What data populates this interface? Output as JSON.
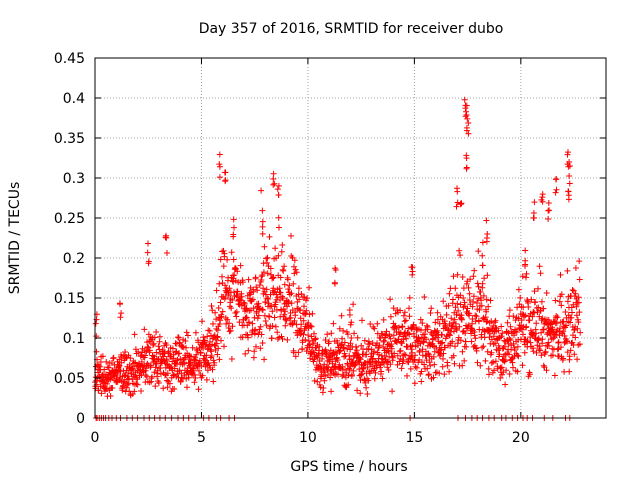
{
  "chart_data": {
    "type": "scatter",
    "title": "Day 357 of 2016, SRMTID for receiver dubo",
    "xlabel": "GPS time / hours",
    "ylabel": "SRMTID / TECUs",
    "xlim": [
      0,
      24
    ],
    "ylim": [
      0,
      0.45
    ],
    "x_ticks": [
      0,
      5,
      10,
      15,
      20
    ],
    "x_tick_labels": [
      "0",
      "5",
      "10",
      "15",
      "20"
    ],
    "y_ticks": [
      0,
      0.05,
      0.1,
      0.15,
      0.2,
      0.25,
      0.3,
      0.35,
      0.4,
      0.45
    ],
    "y_tick_labels": [
      "0",
      "0.05",
      "0.1",
      "0.15",
      "0.2",
      "0.25",
      "0.3",
      "0.35",
      "0.4",
      "0.45"
    ],
    "grid": true,
    "marker": "+",
    "marker_color": "#ff0000",
    "series": [
      {
        "name": "SRMTID",
        "profile": [
          [
            0.0,
            0.05
          ],
          [
            0.5,
            0.045
          ],
          [
            1.0,
            0.06
          ],
          [
            1.5,
            0.055
          ],
          [
            2.0,
            0.06
          ],
          [
            2.5,
            0.08
          ],
          [
            3.0,
            0.07
          ],
          [
            3.5,
            0.065
          ],
          [
            4.0,
            0.07
          ],
          [
            4.5,
            0.065
          ],
          [
            5.0,
            0.075
          ],
          [
            5.5,
            0.08
          ],
          [
            6.0,
            0.14
          ],
          [
            6.5,
            0.16
          ],
          [
            7.0,
            0.13
          ],
          [
            7.5,
            0.13
          ],
          [
            8.0,
            0.15
          ],
          [
            8.5,
            0.16
          ],
          [
            9.0,
            0.14
          ],
          [
            9.5,
            0.14
          ],
          [
            10.0,
            0.1
          ],
          [
            10.5,
            0.07
          ],
          [
            11.0,
            0.07
          ],
          [
            11.5,
            0.08
          ],
          [
            12.0,
            0.075
          ],
          [
            12.5,
            0.065
          ],
          [
            13.0,
            0.07
          ],
          [
            13.5,
            0.08
          ],
          [
            14.0,
            0.09
          ],
          [
            14.5,
            0.1
          ],
          [
            15.0,
            0.09
          ],
          [
            15.5,
            0.085
          ],
          [
            16.0,
            0.09
          ],
          [
            16.5,
            0.1
          ],
          [
            17.0,
            0.13
          ],
          [
            17.5,
            0.12
          ],
          [
            18.0,
            0.13
          ],
          [
            18.5,
            0.11
          ],
          [
            19.0,
            0.08
          ],
          [
            19.5,
            0.09
          ],
          [
            20.0,
            0.11
          ],
          [
            20.5,
            0.12
          ],
          [
            21.0,
            0.11
          ],
          [
            21.5,
            0.1
          ],
          [
            22.0,
            0.11
          ],
          [
            22.5,
            0.12
          ],
          [
            22.8,
            0.14
          ]
        ],
        "peaks": [
          [
            0.05,
            0.13
          ],
          [
            1.2,
            0.155
          ],
          [
            2.5,
            0.22
          ],
          [
            3.35,
            0.23
          ],
          [
            5.85,
            0.33
          ],
          [
            6.1,
            0.31
          ],
          [
            6.5,
            0.25
          ],
          [
            8.4,
            0.315
          ],
          [
            8.6,
            0.3
          ],
          [
            7.9,
            0.26
          ],
          [
            17.4,
            0.405
          ],
          [
            17.45,
            0.395
          ],
          [
            17.5,
            0.37
          ],
          [
            17.45,
            0.34
          ],
          [
            17.0,
            0.29
          ],
          [
            17.2,
            0.27
          ],
          [
            18.4,
            0.25
          ],
          [
            18.2,
            0.22
          ],
          [
            20.6,
            0.27
          ],
          [
            21.0,
            0.28
          ],
          [
            21.3,
            0.27
          ],
          [
            21.65,
            0.31
          ],
          [
            22.2,
            0.34
          ],
          [
            22.3,
            0.32
          ],
          [
            22.25,
            0.3
          ],
          [
            14.9,
            0.19
          ],
          [
            11.3,
            0.19
          ],
          [
            12.0,
            0.145
          ],
          [
            20.2,
            0.215
          ]
        ],
        "zero_points": [
          0.05,
          0.1,
          0.2,
          0.3,
          0.4,
          0.5,
          0.65,
          0.8,
          1.0,
          1.2,
          1.5,
          1.75,
          2.0,
          2.3,
          2.55,
          2.8,
          3.05,
          3.3,
          3.6,
          3.9,
          4.15,
          4.4,
          4.7,
          5.1,
          5.35,
          5.7,
          5.9,
          6.3,
          6.55,
          14.8,
          17.05,
          17.4,
          17.7,
          17.95,
          18.2,
          18.5,
          18.75,
          19.1,
          19.3,
          19.6,
          19.85,
          20.1,
          20.3,
          20.55,
          21.1,
          21.5,
          22.1,
          22.3
        ]
      }
    ]
  }
}
